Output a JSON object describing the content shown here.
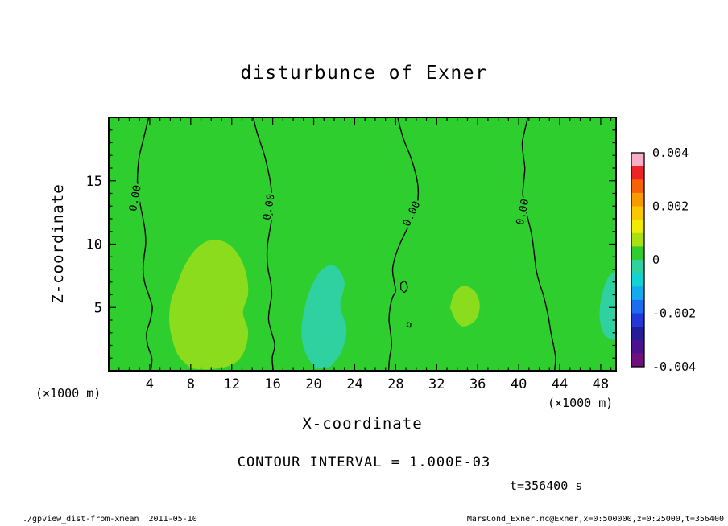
{
  "figure": {
    "title": "disturbunce of Exner",
    "xlabel": "X-coordinate",
    "ylabel": "Z-coordinate",
    "axis_units_left": "(×1000 m)",
    "axis_units_right": "(×1000 m)",
    "contour_note": "CONTOUR INTERVAL = 1.000E-03",
    "time_note": "t=356400 s",
    "footer_left": "./gpview_dist-from-xmean  2011-05-10",
    "footer_right": "MarsCond_Exner.nc@Exner,x=0:500000,z=0:25000,t=356400"
  },
  "chart_data": {
    "type": "heatmap",
    "subtype": "filled-contour-plot",
    "title": "disturbunce of Exner",
    "xlabel": "X-coordinate",
    "ylabel": "Z-coordinate",
    "units": "(×1000 m)",
    "xlim": [
      0,
      49.5
    ],
    "ylim": [
      0,
      20
    ],
    "x_ticks": [
      4,
      8,
      12,
      16,
      20,
      24,
      28,
      32,
      36,
      40,
      44,
      48
    ],
    "y_ticks": [
      5,
      10,
      15
    ],
    "grid": false,
    "contour_interval": 0.001,
    "contour_label": "0.00",
    "base_value": 0,
    "base_color": "#2fce2f",
    "fill_regions": [
      {
        "name": "positive-anomaly-left",
        "level": "0.0005 to 0.001",
        "color": "#8cdc1e",
        "points": [
          [
            8.0,
            0.2
          ],
          [
            6.8,
            1.2
          ],
          [
            6.2,
            2.5
          ],
          [
            5.9,
            4.0
          ],
          [
            6.1,
            5.6
          ],
          [
            6.8,
            7.1
          ],
          [
            7.4,
            8.3
          ],
          [
            8.5,
            9.6
          ],
          [
            9.9,
            10.3
          ],
          [
            11.5,
            10.1
          ],
          [
            12.7,
            9.1
          ],
          [
            13.4,
            7.7
          ],
          [
            13.6,
            6.1
          ],
          [
            13.1,
            4.6
          ],
          [
            13.6,
            3.1
          ],
          [
            13.2,
            1.5
          ],
          [
            12.1,
            0.5
          ],
          [
            10.3,
            0.15
          ],
          [
            9.0,
            0.1
          ]
        ]
      },
      {
        "name": "positive-anomaly-mid",
        "level": "0.0005 to 0.001",
        "color": "#8cdc1e",
        "points": [
          [
            33.3,
            5.0
          ],
          [
            33.7,
            6.1
          ],
          [
            34.6,
            6.7
          ],
          [
            35.7,
            6.3
          ],
          [
            36.2,
            5.2
          ],
          [
            35.8,
            4.0
          ],
          [
            34.6,
            3.5
          ],
          [
            33.8,
            4.0
          ]
        ]
      },
      {
        "name": "negative-anomaly-mid",
        "level": "-0.001 to -0.0005",
        "color": "#2fd1a0",
        "points": [
          [
            20.2,
            0.15
          ],
          [
            19.2,
            1.4
          ],
          [
            18.8,
            3.0
          ],
          [
            19.1,
            4.9
          ],
          [
            19.7,
            6.5
          ],
          [
            20.7,
            7.9
          ],
          [
            22.0,
            8.3
          ],
          [
            23.0,
            7.0
          ],
          [
            22.6,
            5.1
          ],
          [
            23.2,
            3.3
          ],
          [
            22.7,
            1.5
          ],
          [
            21.6,
            0.3
          ]
        ]
      },
      {
        "name": "negative-anomaly-right-edge",
        "level": "-0.001 to -0.0005",
        "color": "#2fd1a0",
        "points": [
          [
            49.5,
            2.4
          ],
          [
            48.4,
            2.8
          ],
          [
            47.9,
            4.2
          ],
          [
            48.1,
            5.9
          ],
          [
            48.7,
            7.3
          ],
          [
            49.5,
            7.9
          ]
        ]
      }
    ],
    "zero_contours": [
      {
        "points": [
          [
            3.9,
            20
          ],
          [
            3.6,
            19
          ],
          [
            3.3,
            18
          ],
          [
            3.0,
            17
          ],
          [
            2.85,
            16
          ],
          [
            2.8,
            15
          ],
          [
            2.9,
            14
          ],
          [
            3.1,
            13
          ],
          [
            3.35,
            12
          ],
          [
            3.55,
            11
          ],
          [
            3.6,
            10
          ],
          [
            3.45,
            9
          ],
          [
            3.35,
            8
          ],
          [
            3.5,
            7
          ],
          [
            3.9,
            6
          ],
          [
            4.25,
            5
          ],
          [
            4.05,
            4
          ],
          [
            3.7,
            3
          ],
          [
            3.8,
            2
          ],
          [
            4.2,
            1
          ],
          [
            4.1,
            0
          ]
        ]
      },
      {
        "points": [
          [
            14.1,
            20
          ],
          [
            14.4,
            19
          ],
          [
            14.8,
            18
          ],
          [
            15.2,
            17
          ],
          [
            15.5,
            16
          ],
          [
            15.75,
            15
          ],
          [
            15.9,
            14
          ],
          [
            16.0,
            13
          ],
          [
            15.9,
            12
          ],
          [
            15.7,
            11
          ],
          [
            15.5,
            10
          ],
          [
            15.45,
            9
          ],
          [
            15.55,
            8
          ],
          [
            15.8,
            7
          ],
          [
            15.9,
            6
          ],
          [
            15.7,
            5
          ],
          [
            15.6,
            4
          ],
          [
            15.9,
            3
          ],
          [
            16.2,
            2
          ],
          [
            15.95,
            1
          ],
          [
            16.05,
            0
          ]
        ]
      },
      {
        "points": [
          [
            28.2,
            20
          ],
          [
            28.5,
            19
          ],
          [
            28.9,
            18
          ],
          [
            29.4,
            17
          ],
          [
            29.8,
            16
          ],
          [
            30.1,
            15
          ],
          [
            30.2,
            14
          ],
          [
            30.05,
            13
          ],
          [
            29.6,
            12
          ],
          [
            29.0,
            11
          ],
          [
            28.4,
            10
          ],
          [
            27.95,
            9
          ],
          [
            27.7,
            8
          ],
          [
            27.85,
            7
          ],
          [
            28.0,
            6.3
          ],
          [
            27.7,
            5.8
          ],
          [
            27.45,
            5
          ],
          [
            27.35,
            4
          ],
          [
            27.5,
            3
          ],
          [
            27.6,
            2
          ],
          [
            27.4,
            1
          ],
          [
            27.3,
            0
          ]
        ]
      },
      {
        "points": [
          [
            40.9,
            20
          ],
          [
            40.6,
            19
          ],
          [
            40.35,
            18
          ],
          [
            40.45,
            17
          ],
          [
            40.6,
            16
          ],
          [
            40.5,
            15
          ],
          [
            40.4,
            14
          ],
          [
            40.6,
            13
          ],
          [
            40.9,
            12
          ],
          [
            41.2,
            11
          ],
          [
            41.4,
            10
          ],
          [
            41.55,
            9
          ],
          [
            41.7,
            8
          ],
          [
            42.0,
            7
          ],
          [
            42.4,
            6
          ],
          [
            42.7,
            5
          ],
          [
            42.95,
            4
          ],
          [
            43.15,
            3
          ],
          [
            43.4,
            2
          ],
          [
            43.6,
            1
          ],
          [
            43.5,
            0
          ]
        ]
      }
    ],
    "closed_contours": [
      {
        "points": [
          [
            28.5,
            6.9
          ],
          [
            28.9,
            7.05
          ],
          [
            29.15,
            6.6
          ],
          [
            28.85,
            6.2
          ],
          [
            28.5,
            6.45
          ]
        ]
      },
      {
        "points": [
          [
            29.15,
            3.8
          ],
          [
            29.45,
            3.75
          ],
          [
            29.4,
            3.45
          ],
          [
            29.1,
            3.55
          ]
        ]
      }
    ],
    "contour_labels": [
      {
        "x": 2.9,
        "z": 13.6,
        "angle": -80
      },
      {
        "x": 15.95,
        "z": 12.9,
        "angle": -80
      },
      {
        "x": 29.85,
        "z": 12.3,
        "angle": -65
      },
      {
        "x": 40.7,
        "z": 12.5,
        "angle": -78
      }
    ],
    "colorbar": {
      "position": "right",
      "ticks": [
        "0.004",
        "0.002",
        "0",
        "-0.002",
        "-0.004"
      ],
      "colors_top_to_bottom": [
        "#f7aec6",
        "#ee2424",
        "#f76205",
        "#f99a00",
        "#f9c800",
        "#f2ea00",
        "#a8e010",
        "#2fce2f",
        "#2fd1a0",
        "#12d2d2",
        "#14aaee",
        "#1b6cf0",
        "#2238d8",
        "#241e96",
        "#4c1190",
        "#70107e"
      ]
    }
  }
}
